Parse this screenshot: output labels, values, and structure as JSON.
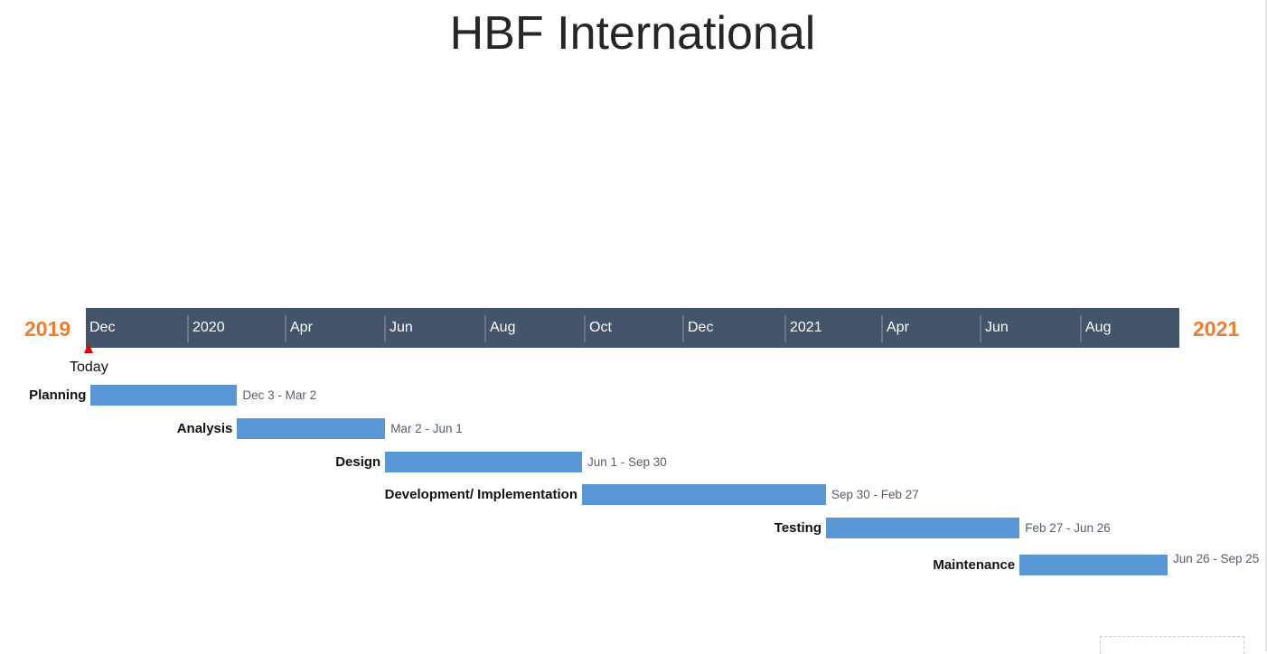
{
  "title": "HBF International",
  "colors": {
    "year_label": "#ed7d31",
    "scale_background": "#44546a",
    "bar": "#5898d6",
    "today_marker": "#e00000"
  },
  "chart_data": {
    "type": "gantt",
    "title": "HBF International",
    "start_year_label": "2019",
    "end_year_label": "2021",
    "today": {
      "label": "Today",
      "date": "2019-12-01"
    },
    "scale_ticks": [
      "Dec",
      "2020",
      "Apr",
      "Jun",
      "Aug",
      "Oct",
      "Dec",
      "2021",
      "Apr",
      "Jun",
      "Aug"
    ],
    "tasks": [
      {
        "name": "Planning",
        "dates_label": "Dec 3 - Mar 2",
        "start": "2019-12-03",
        "end": "2020-03-02"
      },
      {
        "name": "Analysis",
        "dates_label": "Mar 2 - Jun 1",
        "start": "2020-03-02",
        "end": "2020-06-01"
      },
      {
        "name": "Design",
        "dates_label": "Jun 1 - Sep 30",
        "start": "2020-06-01",
        "end": "2020-09-30"
      },
      {
        "name": "Development/ Implementation",
        "dates_label": "Sep 30 - Feb 27",
        "start": "2020-09-30",
        "end": "2021-02-27"
      },
      {
        "name": "Testing",
        "dates_label": "Feb 27 - Jun 26",
        "start": "2021-02-27",
        "end": "2021-06-26"
      },
      {
        "name": "Maintenance",
        "dates_label": "Jun 26 - Sep 25",
        "start": "2021-06-26",
        "end": "2021-09-25"
      }
    ]
  }
}
